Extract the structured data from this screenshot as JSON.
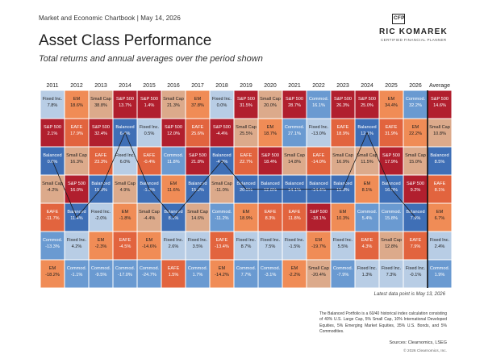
{
  "header": {
    "text": "Market and Economic Chartbook | May 14, 2026"
  },
  "logo": {
    "badge": "CFP",
    "name": "RIC KOMAREK",
    "tagline": "CERTIFIED FINANCIAL PLANNER"
  },
  "title": "Asset Class Performance",
  "subtitle": "Total returns and annual averages over the period shown",
  "note_date": "Latest data point is May 13, 2026",
  "footnote": "The Balanced Portfolio is a 60/40 historical index calculation consisting of 40% U.S. Large Cap, 5% Small Cap, 10% International Developed Equities, 5% Emerging Market Equities, 35% U.S. Bonds, and 5% Commodities.",
  "sources": "Sources: Clearnomics, LSEG",
  "copyright": "© 2026 Clearnomics, Inc.",
  "colors": {
    "S&P 500": "#b11f2e",
    "EAFE": "#e2643e",
    "Small Cap": "#dcaa8b",
    "EM": "#f08c56",
    "Fixed Inc.": "#b8cde5",
    "Balanced": "#3f6fb6",
    "Commod.": "#6a9ad1"
  },
  "chart_data": {
    "type": "table",
    "columns": [
      "2011",
      "2012",
      "2013",
      "2014",
      "2015",
      "2016",
      "2017",
      "2018",
      "2019",
      "2020",
      "2021",
      "2022",
      "2023",
      "2024",
      "2025",
      "2026",
      "Average"
    ],
    "ranking": [
      [
        {
          "asset": "Fixed Inc.",
          "value": "7.8%"
        },
        {
          "asset": "EM",
          "value": "18.6%"
        },
        {
          "asset": "Small Cap",
          "value": "38.8%"
        },
        {
          "asset": "S&P 500",
          "value": "13.7%"
        },
        {
          "asset": "S&P 500",
          "value": "1.4%"
        },
        {
          "asset": "Small Cap",
          "value": "21.3%"
        },
        {
          "asset": "EM",
          "value": "37.8%"
        },
        {
          "asset": "Fixed Inc.",
          "value": "0.0%"
        },
        {
          "asset": "S&P 500",
          "value": "31.5%"
        },
        {
          "asset": "Small Cap",
          "value": "20.0%"
        },
        {
          "asset": "S&P 500",
          "value": "28.7%"
        },
        {
          "asset": "Commod.",
          "value": "16.1%"
        },
        {
          "asset": "S&P 500",
          "value": "26.3%"
        },
        {
          "asset": "S&P 500",
          "value": "25.0%"
        },
        {
          "asset": "EM",
          "value": "34.4%"
        },
        {
          "asset": "Commod.",
          "value": "32.2%"
        },
        {
          "asset": "S&P 500",
          "value": "14.6%"
        }
      ],
      [
        {
          "asset": "S&P 500",
          "value": "2.1%"
        },
        {
          "asset": "EAFE",
          "value": "17.9%"
        },
        {
          "asset": "S&P 500",
          "value": "32.4%"
        },
        {
          "asset": "Balanced",
          "value": "6.4%"
        },
        {
          "asset": "Fixed Inc.",
          "value": "0.5%"
        },
        {
          "asset": "S&P 500",
          "value": "12.0%"
        },
        {
          "asset": "EAFE",
          "value": "25.6%"
        },
        {
          "asset": "S&P 500",
          "value": "-4.4%"
        },
        {
          "asset": "Small Cap",
          "value": "25.5%"
        },
        {
          "asset": "EM",
          "value": "18.7%"
        },
        {
          "asset": "Commod.",
          "value": "27.1%"
        },
        {
          "asset": "Fixed Inc.",
          "value": "-13.0%"
        },
        {
          "asset": "EAFE",
          "value": "18.9%"
        },
        {
          "asset": "Balanced",
          "value": "12.1%"
        },
        {
          "asset": "EAFE",
          "value": "31.9%"
        },
        {
          "asset": "EM",
          "value": "22.2%"
        },
        {
          "asset": "Small Cap",
          "value": "10.8%"
        }
      ],
      [
        {
          "asset": "Balanced",
          "value": "0.6%"
        },
        {
          "asset": "Small Cap",
          "value": "16.3%"
        },
        {
          "asset": "EAFE",
          "value": "23.3%"
        },
        {
          "asset": "Fixed Inc.",
          "value": "6.0%"
        },
        {
          "asset": "EAFE",
          "value": "-0.4%"
        },
        {
          "asset": "Commod.",
          "value": "11.8%"
        },
        {
          "asset": "S&P 500",
          "value": "21.8%"
        },
        {
          "asset": "Balanced",
          "value": "-4.9%"
        },
        {
          "asset": "EAFE",
          "value": "22.7%"
        },
        {
          "asset": "S&P 500",
          "value": "18.4%"
        },
        {
          "asset": "Small Cap",
          "value": "14.8%"
        },
        {
          "asset": "EAFE",
          "value": "-14.0%"
        },
        {
          "asset": "Small Cap",
          "value": "16.9%"
        },
        {
          "asset": "Small Cap",
          "value": "11.5%"
        },
        {
          "asset": "S&P 500",
          "value": "17.9%"
        },
        {
          "asset": "Small Cap",
          "value": "15.0%"
        },
        {
          "asset": "Balanced",
          "value": "8.5%"
        }
      ],
      [
        {
          "asset": "Small Cap",
          "value": "-4.2%"
        },
        {
          "asset": "S&P 500",
          "value": "16.0%"
        },
        {
          "asset": "Balanced",
          "value": "15.9%"
        },
        {
          "asset": "Small Cap",
          "value": "4.9%"
        },
        {
          "asset": "Balanced",
          "value": "-1.5%"
        },
        {
          "asset": "EM",
          "value": "11.6%"
        },
        {
          "asset": "Balanced",
          "value": "15.2%"
        },
        {
          "asset": "Small Cap",
          "value": "-11.0%"
        },
        {
          "asset": "Balanced",
          "value": "20.5%"
        },
        {
          "asset": "Balanced",
          "value": "12.6%"
        },
        {
          "asset": "Balanced",
          "value": "14.1%"
        },
        {
          "asset": "Balanced",
          "value": "-14.4%"
        },
        {
          "asset": "Balanced",
          "value": "15.3%"
        },
        {
          "asset": "EM",
          "value": "8.1%"
        },
        {
          "asset": "Balanced",
          "value": "16.0%"
        },
        {
          "asset": "S&P 500",
          "value": "9.2%"
        },
        {
          "asset": "EAFE",
          "value": "8.1%"
        }
      ],
      [
        {
          "asset": "EAFE",
          "value": "-11.7%"
        },
        {
          "asset": "Balanced",
          "value": "11.4%"
        },
        {
          "asset": "Fixed Inc.",
          "value": "-2.0%"
        },
        {
          "asset": "EM",
          "value": "-1.8%"
        },
        {
          "asset": "Small Cap",
          "value": "-4.4%"
        },
        {
          "asset": "Balanced",
          "value": "8.1%"
        },
        {
          "asset": "Small Cap",
          "value": "14.6%"
        },
        {
          "asset": "Commod.",
          "value": "-11.2%"
        },
        {
          "asset": "EM",
          "value": "18.9%"
        },
        {
          "asset": "EAFE",
          "value": "8.3%"
        },
        {
          "asset": "EAFE",
          "value": "11.8%"
        },
        {
          "asset": "S&P 500",
          "value": "-18.1%"
        },
        {
          "asset": "EM",
          "value": "10.3%"
        },
        {
          "asset": "Commod.",
          "value": "5.4%"
        },
        {
          "asset": "Commod.",
          "value": "15.8%"
        },
        {
          "asset": "Balanced",
          "value": "7.9%"
        },
        {
          "asset": "EM",
          "value": "6.7%"
        }
      ],
      [
        {
          "asset": "Commod.",
          "value": "-13.3%"
        },
        {
          "asset": "Fixed Inc.",
          "value": "4.2%"
        },
        {
          "asset": "EM",
          "value": "-2.3%"
        },
        {
          "asset": "EAFE",
          "value": "-4.5%"
        },
        {
          "asset": "EM",
          "value": "-14.6%"
        },
        {
          "asset": "Fixed Inc.",
          "value": "2.6%"
        },
        {
          "asset": "Fixed Inc.",
          "value": "3.5%"
        },
        {
          "asset": "EAFE",
          "value": "-13.4%"
        },
        {
          "asset": "Fixed Inc.",
          "value": "8.7%"
        },
        {
          "asset": "Fixed Inc.",
          "value": "7.5%"
        },
        {
          "asset": "Fixed Inc.",
          "value": "-1.5%"
        },
        {
          "asset": "EM",
          "value": "-19.7%"
        },
        {
          "asset": "Fixed Inc.",
          "value": "5.5%"
        },
        {
          "asset": "EAFE",
          "value": "4.3%"
        },
        {
          "asset": "Small Cap",
          "value": "12.8%"
        },
        {
          "asset": "EAFE",
          "value": "7.9%"
        },
        {
          "asset": "Fixed Inc.",
          "value": "2.4%"
        }
      ],
      [
        {
          "asset": "EM",
          "value": "-18.2%"
        },
        {
          "asset": "Commod.",
          "value": "-1.1%"
        },
        {
          "asset": "Commod.",
          "value": "-9.5%"
        },
        {
          "asset": "Commod.",
          "value": "-17.0%"
        },
        {
          "asset": "Commod.",
          "value": "-24.7%"
        },
        {
          "asset": "EAFE",
          "value": "1.5%"
        },
        {
          "asset": "Commod.",
          "value": "1.7%"
        },
        {
          "asset": "EM",
          "value": "-14.2%"
        },
        {
          "asset": "Commod.",
          "value": "7.7%"
        },
        {
          "asset": "Commod.",
          "value": "-3.1%"
        },
        {
          "asset": "EM",
          "value": "-2.2%"
        },
        {
          "asset": "Small Cap",
          "value": "-20.4%"
        },
        {
          "asset": "Commod.",
          "value": "-7.9%"
        },
        {
          "asset": "Fixed Inc.",
          "value": "1.3%"
        },
        {
          "asset": "Fixed Inc.",
          "value": "7.3%"
        },
        {
          "asset": "Fixed Inc.",
          "value": "-0.1%"
        },
        {
          "asset": "Commod.",
          "value": "1.9%"
        }
      ]
    ],
    "highlighted_path": "Balanced"
  }
}
